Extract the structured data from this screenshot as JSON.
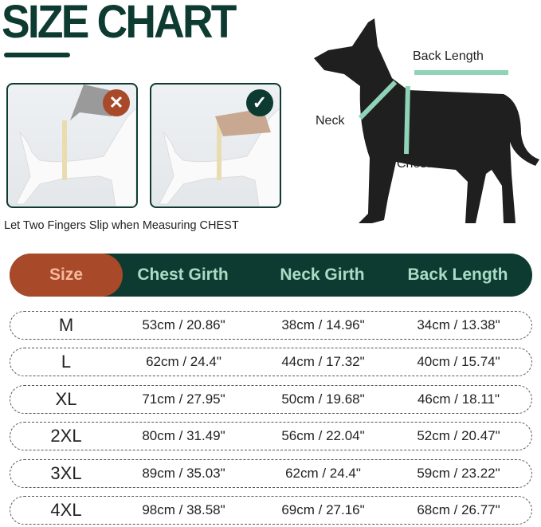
{
  "title": "SIZE CHART",
  "photos": [
    {
      "badge": "✕",
      "badge_icon": "cross-icon",
      "badge_color": "#a8492a"
    },
    {
      "badge": "✓",
      "badge_icon": "check-icon",
      "badge_color": "#0e3b31"
    }
  ],
  "caption": "Let Two Fingers Slip when Measuring CHEST",
  "diagram": {
    "back_length": "Back Length",
    "neck": "Neck",
    "chest": "Chest"
  },
  "colors": {
    "primary": "#0e3b31",
    "accent": "#a8492a",
    "header_text": "#a9dcc5",
    "size_text": "#f6b99c",
    "tape": "#8fd3b8"
  },
  "table": {
    "headers": [
      "Size",
      "Chest Girth",
      "Neck Girth",
      "Back Length"
    ],
    "rows": [
      [
        "M",
        "53cm / 20.86\"",
        "38cm / 14.96\"",
        "34cm / 13.38\""
      ],
      [
        "L",
        "62cm / 24.4\"",
        "44cm / 17.32\"",
        "40cm / 15.74\""
      ],
      [
        "XL",
        "71cm / 27.95\"",
        "50cm / 19.68\"",
        "46cm / 18.11\""
      ],
      [
        "2XL",
        "80cm / 31.49\"",
        "56cm / 22.04\"",
        "52cm / 20.47\""
      ],
      [
        "3XL",
        "89cm / 35.03\"",
        "62cm / 24.4\"",
        "59cm / 23.22\""
      ],
      [
        "4XL",
        "98cm / 38.58\"",
        "69cm / 27.16\"",
        "68cm / 26.77\""
      ]
    ]
  }
}
